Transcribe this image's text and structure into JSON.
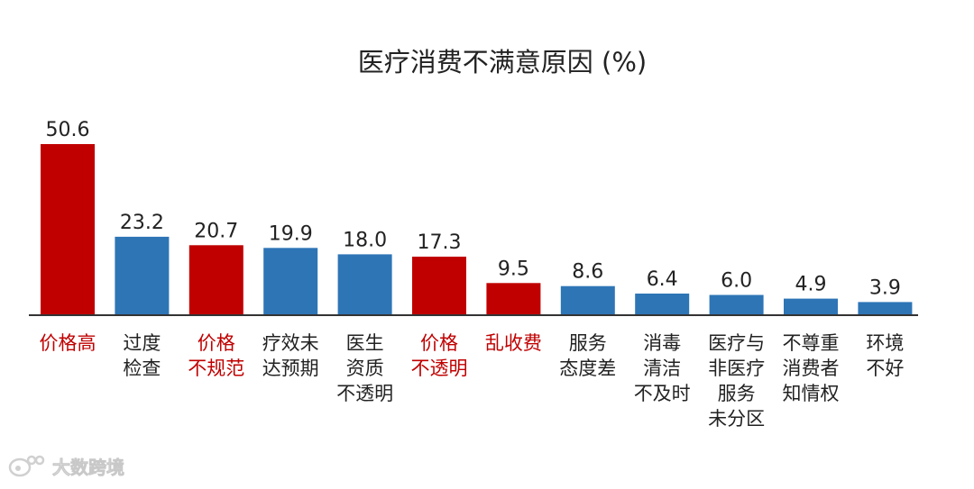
{
  "chart_data": {
    "type": "bar",
    "title": "医疗消费不满意原因 (%)",
    "xlabel": "",
    "ylabel": "",
    "ylim": [
      0,
      55
    ],
    "grid": false,
    "legend": "none",
    "categories": [
      [
        "价格高"
      ],
      [
        "过度",
        "检查"
      ],
      [
        "价格",
        "不规范"
      ],
      [
        "疗效未",
        "达预期"
      ],
      [
        "医生",
        "资质",
        "不透明"
      ],
      [
        "价格",
        "不透明"
      ],
      [
        "乱收费"
      ],
      [
        "服务",
        "态度差"
      ],
      [
        "消毒",
        "清洁",
        "不及时"
      ],
      [
        "医疗与",
        "非医疗",
        "服务",
        "未分区"
      ],
      [
        "不尊重",
        "消费者",
        "知情权"
      ],
      [
        "环境",
        "不好"
      ]
    ],
    "values": [
      50.6,
      23.2,
      20.7,
      19.9,
      18.0,
      17.3,
      9.5,
      8.6,
      6.4,
      6.0,
      4.9,
      3.9
    ],
    "value_labels": [
      "50.6",
      "23.2",
      "20.7",
      "19.9",
      "18.0",
      "17.3",
      "9.5",
      "8.6",
      "6.4",
      "6.0",
      "4.9",
      "3.9"
    ],
    "highlighted": [
      true,
      false,
      true,
      false,
      false,
      true,
      true,
      false,
      false,
      false,
      false,
      false
    ],
    "colors": {
      "highlight_bar": "#c00000",
      "normal_bar": "#2e75b6",
      "highlight_label": "#c00000",
      "normal_label": "#222222",
      "axis": "#333333"
    }
  },
  "watermark": {
    "text": "大数跨境",
    "icon": "weibo-style-logo-icon"
  }
}
